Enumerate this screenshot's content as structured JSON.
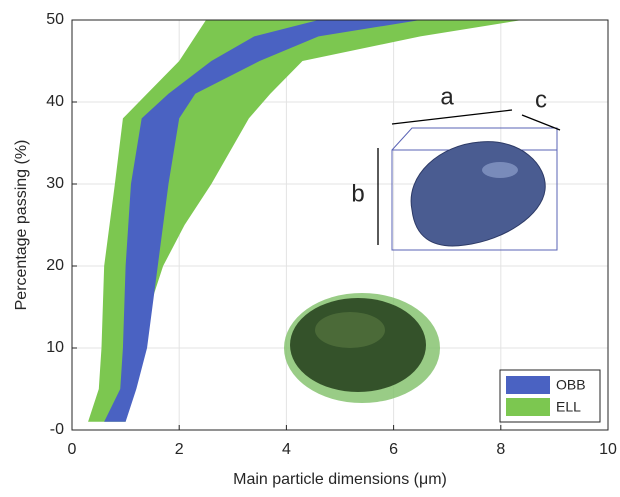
{
  "chart_data": {
    "type": "band",
    "xlabel": "Main particle dimensions (μm)",
    "ylabel": "Percentage passing (%)",
    "xlim": [
      0,
      10
    ],
    "xticks": [
      0,
      2,
      4,
      6,
      8,
      10
    ],
    "ylim": [
      0,
      50
    ],
    "yticks": [
      {
        "value": 0,
        "label": "-0"
      },
      10,
      20,
      30,
      40,
      50
    ],
    "grid": true,
    "legend": "lower right",
    "series": [
      {
        "name": "ELL",
        "color": "#7cc750",
        "y": [
          1,
          5,
          10,
          20,
          25,
          30,
          38,
          41,
          45,
          48,
          50
        ],
        "x_min": [
          0.3,
          0.5,
          0.55,
          0.6,
          0.7,
          0.8,
          0.95,
          1.4,
          2.0,
          2.3,
          2.5
        ],
        "x_max": [
          1.0,
          1.1,
          1.2,
          1.7,
          2.1,
          2.6,
          3.3,
          3.7,
          4.3,
          6.5,
          8.4
        ]
      },
      {
        "name": "OBB",
        "color": "#4a62c2",
        "y": [
          1,
          5,
          10,
          20,
          25,
          30,
          38,
          41,
          45,
          48,
          50
        ],
        "x_min": [
          0.6,
          0.9,
          0.95,
          1.0,
          1.05,
          1.1,
          1.3,
          1.8,
          2.6,
          3.4,
          4.6
        ],
        "x_max": [
          1.0,
          1.2,
          1.4,
          1.6,
          1.7,
          1.8,
          2.0,
          2.3,
          3.5,
          4.6,
          6.5
        ]
      }
    ],
    "legend_order": [
      1,
      0
    ],
    "annotations": [
      "a",
      "b",
      "c"
    ]
  }
}
